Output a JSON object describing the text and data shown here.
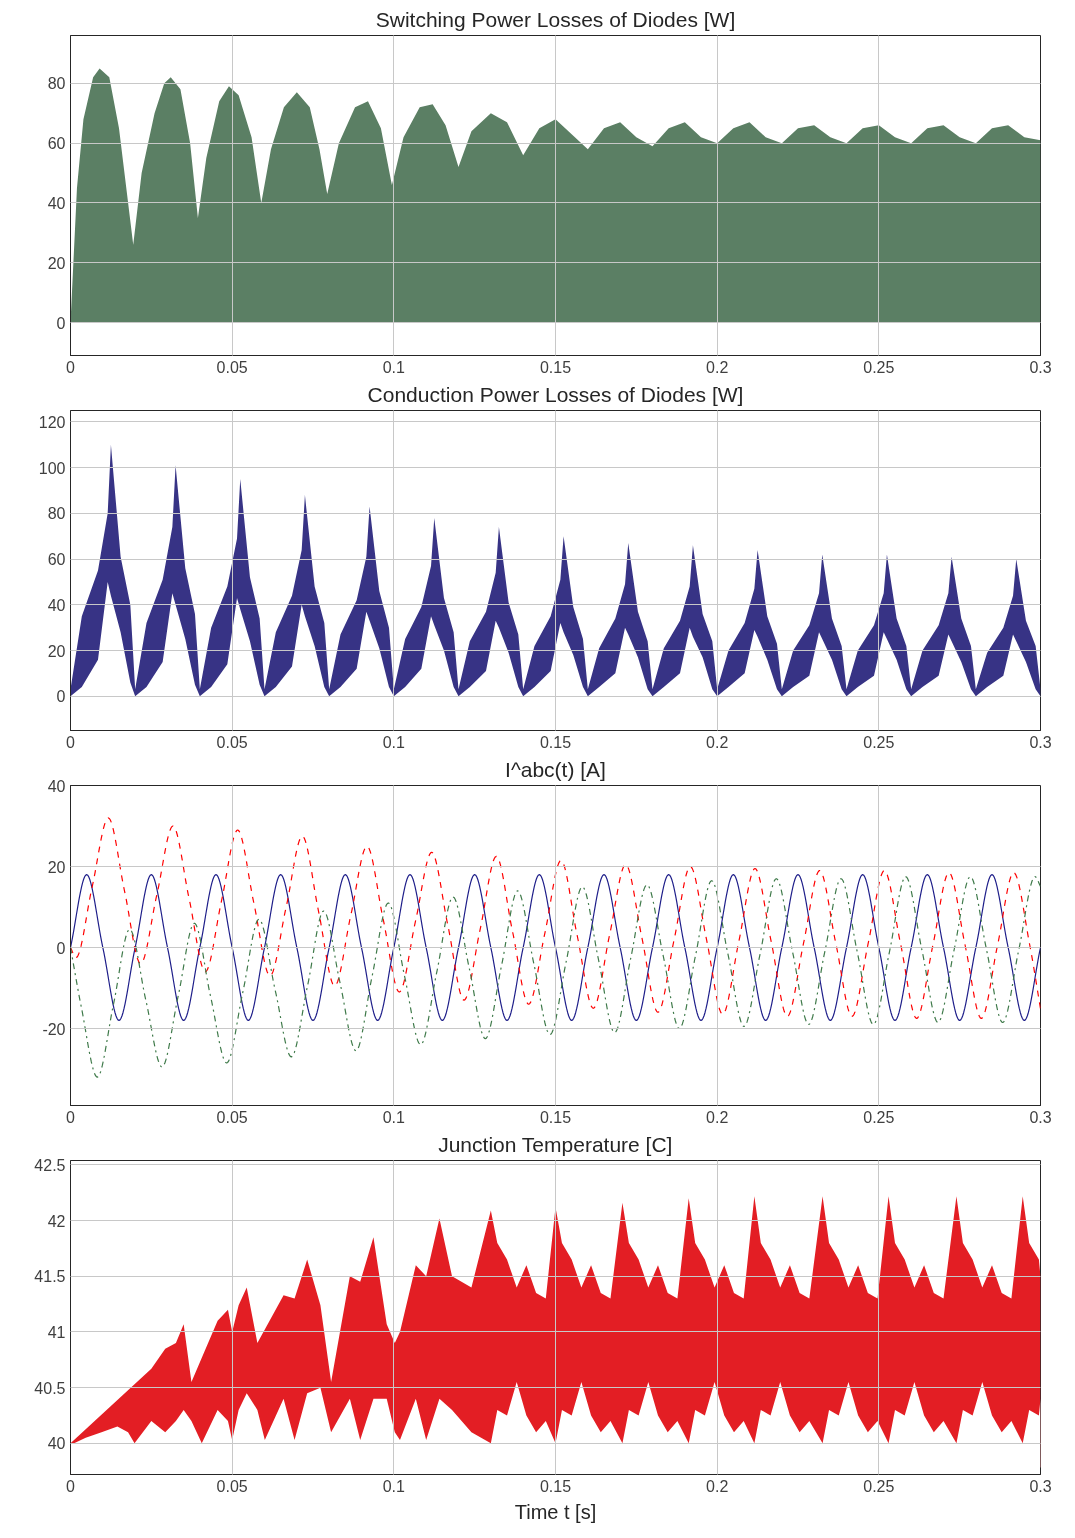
{
  "chart_data": [
    {
      "type": "area",
      "title": "Switching Power Losses of Diodes [W]",
      "color": "#5b7f64",
      "xlim": [
        0,
        0.3
      ],
      "xticks": [
        0,
        0.05,
        0.1,
        0.15,
        0.2,
        0.25,
        0.3
      ],
      "ylim": [
        -11,
        96
      ],
      "yticks": [
        0,
        20,
        40,
        60,
        80
      ],
      "grid": true,
      "x": [
        0,
        0.002,
        0.004,
        0.007,
        0.009,
        0.012,
        0.015,
        0.0194,
        0.022,
        0.026,
        0.029,
        0.031,
        0.034,
        0.037,
        0.0394,
        0.042,
        0.046,
        0.049,
        0.052,
        0.056,
        0.059,
        0.062,
        0.066,
        0.07,
        0.074,
        0.077,
        0.0794,
        0.083,
        0.088,
        0.092,
        0.096,
        0.0994,
        0.103,
        0.108,
        0.112,
        0.116,
        0.12,
        0.124,
        0.13,
        0.135,
        0.14,
        0.145,
        0.15,
        0.155,
        0.16,
        0.165,
        0.17,
        0.175,
        0.18,
        0.185,
        0.19,
        0.195,
        0.2,
        0.205,
        0.21,
        0.215,
        0.22,
        0.225,
        0.23,
        0.235,
        0.24,
        0.245,
        0.25,
        0.255,
        0.26,
        0.265,
        0.27,
        0.275,
        0.28,
        0.285,
        0.29,
        0.295,
        0.3
      ],
      "values": [
        0,
        45,
        68,
        82,
        85,
        82,
        65,
        26,
        50,
        70,
        80,
        82,
        78,
        60,
        35,
        55,
        74,
        79,
        76,
        62,
        40,
        58,
        72,
        77,
        72,
        58,
        43,
        60,
        72,
        74,
        65,
        46,
        62,
        72,
        73,
        66,
        52,
        64,
        70,
        67,
        56,
        65,
        68,
        63,
        58,
        65,
        67,
        62,
        59,
        65,
        67,
        62,
        60,
        65,
        67,
        62,
        60,
        65,
        66,
        62,
        60,
        65,
        66,
        62,
        60,
        65,
        66,
        62,
        60,
        65,
        66,
        62,
        61
      ]
    },
    {
      "type": "area",
      "title": "Conduction Power Losses of Diodes [W]",
      "xlim": [
        0,
        0.3
      ],
      "xticks": [
        0,
        0.05,
        0.1,
        0.15,
        0.2,
        0.25,
        0.3
      ],
      "ylim": [
        -15,
        125
      ],
      "yticks": [
        0,
        20,
        40,
        60,
        80,
        100,
        120
      ],
      "grid": true,
      "x": [
        0,
        0.0035,
        0.0085,
        0.0115,
        0.0125,
        0.0155,
        0.0185,
        0.02,
        0.0235,
        0.0285,
        0.0315,
        0.0325,
        0.0355,
        0.0385,
        0.04,
        0.0435,
        0.0485,
        0.0515,
        0.0525,
        0.0555,
        0.0585,
        0.06,
        0.0635,
        0.0685,
        0.0715,
        0.0725,
        0.0755,
        0.0785,
        0.08,
        0.0835,
        0.0885,
        0.0915,
        0.0925,
        0.0955,
        0.0985,
        0.1,
        0.1035,
        0.1085,
        0.1115,
        0.1125,
        0.1155,
        0.1185,
        0.12,
        0.1235,
        0.1285,
        0.1315,
        0.1325,
        0.1355,
        0.1385,
        0.14,
        0.1435,
        0.1485,
        0.1515,
        0.1525,
        0.1555,
        0.1585,
        0.16,
        0.1635,
        0.1685,
        0.1715,
        0.1725,
        0.1755,
        0.1785,
        0.18,
        0.1835,
        0.1885,
        0.1915,
        0.1925,
        0.1955,
        0.1985,
        0.2,
        0.2035,
        0.2085,
        0.2115,
        0.2125,
        0.2155,
        0.2185,
        0.22,
        0.2235,
        0.2285,
        0.2315,
        0.2325,
        0.2355,
        0.2385,
        0.24,
        0.2435,
        0.2485,
        0.2515,
        0.2525,
        0.2555,
        0.2585,
        0.26,
        0.2635,
        0.2685,
        0.2715,
        0.2725,
        0.2755,
        0.2785,
        0.28,
        0.2835,
        0.2885,
        0.2915,
        0.2925,
        0.2955,
        0.2985,
        0.3
      ],
      "series": [
        {
          "color": "#373385",
          "values": [
            3,
            35,
            55,
            80,
            110,
            61,
            40,
            3,
            32,
            51,
            74,
            101,
            56,
            36,
            3,
            30,
            48,
            69,
            95,
            52,
            34,
            3,
            28,
            44,
            64,
            88,
            48,
            32,
            3,
            27,
            42,
            61,
            83,
            46,
            30,
            3,
            25,
            39,
            57,
            78,
            43,
            28,
            3,
            24,
            37,
            54,
            74,
            41,
            27,
            3,
            22,
            35,
            51,
            70,
            39,
            25,
            3,
            21,
            34,
            49,
            67,
            37,
            24,
            3,
            21,
            33,
            48,
            66,
            36,
            24,
            3,
            20,
            32,
            47,
            64,
            35,
            23,
            3,
            20,
            31,
            45,
            62,
            34,
            22,
            3,
            20,
            31,
            45,
            62,
            34,
            22,
            3,
            20,
            31,
            45,
            61,
            34,
            22,
            3,
            19,
            30,
            44,
            60,
            33,
            22,
            3
          ]
        },
        {
          "color": "#ffffff",
          "values": [
            0,
            4,
            16,
            50,
            44,
            28,
            6,
            0,
            4,
            15,
            45,
            40,
            25,
            5,
            0,
            4,
            14,
            43,
            38,
            24,
            5,
            0,
            4,
            13,
            40,
            35,
            22,
            4,
            0,
            4,
            12,
            37,
            33,
            21,
            4,
            0,
            4,
            12,
            35,
            31,
            20,
            4,
            0,
            4,
            11,
            33,
            30,
            19,
            4,
            0,
            4,
            11,
            32,
            28,
            18,
            4,
            0,
            4,
            10,
            30,
            27,
            17,
            3,
            0,
            4,
            10,
            30,
            26,
            17,
            3,
            0,
            4,
            10,
            29,
            26,
            16,
            3,
            0,
            4,
            9,
            28,
            25,
            16,
            3,
            0,
            4,
            9,
            28,
            25,
            16,
            3,
            0,
            4,
            9,
            27,
            24,
            15,
            3,
            0,
            4,
            9,
            27,
            24,
            15,
            3,
            0
          ]
        }
      ]
    },
    {
      "type": "line",
      "title": "I^abc(t) [A]",
      "xlim": [
        0,
        0.3
      ],
      "xticks": [
        0,
        0.05,
        0.1,
        0.15,
        0.2,
        0.25,
        0.3
      ],
      "ylim": [
        -39,
        40
      ],
      "yticks": [
        -20,
        0,
        20,
        40
      ],
      "grid": true,
      "series": [
        {
          "color": "#1f1f8a",
          "line_style": "solid",
          "x": [
            0,
            0.005,
            0.01,
            0.015,
            0.02,
            0.025,
            0.03,
            0.035,
            0.04,
            0.045,
            0.05,
            0.055,
            0.06,
            0.065,
            0.07,
            0.075,
            0.08,
            0.085,
            0.09,
            0.095,
            0.1,
            0.105,
            0.11,
            0.115,
            0.12,
            0.125,
            0.13,
            0.135,
            0.14,
            0.145,
            0.15,
            0.155,
            0.16,
            0.165,
            0.17,
            0.175,
            0.18,
            0.185,
            0.19,
            0.195,
            0.2,
            0.205,
            0.21,
            0.215,
            0.22,
            0.225,
            0.23,
            0.235,
            0.24,
            0.245,
            0.25,
            0.255,
            0.26,
            0.265,
            0.27,
            0.275,
            0.28,
            0.285,
            0.29,
            0.295,
            0.3
          ],
          "values": [
            0,
            18,
            0,
            -18,
            0,
            18,
            0,
            -18,
            0,
            18,
            0,
            -18,
            0,
            18,
            0,
            -18,
            0,
            18,
            0,
            -18,
            0,
            18,
            0,
            -18,
            0,
            18,
            0,
            -18,
            0,
            18,
            0,
            -18,
            0,
            18,
            0,
            -18,
            0,
            18,
            0,
            -18,
            0,
            18,
            0,
            -18,
            0,
            18,
            0,
            -18,
            0,
            18,
            0,
            -18,
            0,
            18,
            0,
            -18,
            0,
            18,
            0,
            -18,
            0
          ]
        },
        {
          "color": "#ff0000",
          "line_style": "dashed",
          "x": [
            0,
            0.0017,
            0.0067,
            0.0117,
            0.0167,
            0.0217,
            0.0267,
            0.0317,
            0.0367,
            0.0417,
            0.0467,
            0.0517,
            0.0567,
            0.0617,
            0.0667,
            0.0717,
            0.0767,
            0.0817,
            0.0867,
            0.0917,
            0.0967,
            0.1017,
            0.1067,
            0.1117,
            0.1167,
            0.1217,
            0.1267,
            0.1317,
            0.1367,
            0.1417,
            0.1467,
            0.1517,
            0.1567,
            0.1617,
            0.1667,
            0.1717,
            0.1767,
            0.1817,
            0.1867,
            0.1917,
            0.1967,
            0.2017,
            0.2067,
            0.2117,
            0.2167,
            0.2217,
            0.2267,
            0.2317,
            0.2367,
            0.2417,
            0.2467,
            0.2517,
            0.2567,
            0.2617,
            0.2667,
            0.2717,
            0.2767,
            0.2817,
            0.2867,
            0.2917,
            0.2967,
            0.3
          ],
          "values": [
            0,
            -2.5,
            15,
            32,
            14,
            -4,
            13,
            30,
            12,
            -6,
            11.5,
            29,
            11,
            -7,
            10,
            27.5,
            9,
            -9.5,
            8,
            25,
            7,
            -11,
            6.5,
            23.5,
            5.5,
            -13,
            4.5,
            22.5,
            4,
            -14,
            3.5,
            21.5,
            3,
            -15,
            3,
            20.5,
            2.5,
            -16,
            2,
            20,
            2,
            -16.5,
            1.5,
            19.5,
            1.5,
            -17,
            1,
            19,
            1,
            -17,
            1,
            19,
            1,
            -17.5,
            0.5,
            18.5,
            0.5,
            -17.5,
            0.5,
            18.5,
            0.5,
            -15.1
          ]
        },
        {
          "color": "#3f7a4a",
          "line_style": "dashdot",
          "x": [
            0,
            0.0033,
            0.0083,
            0.0133,
            0.0183,
            0.0233,
            0.0283,
            0.0333,
            0.0383,
            0.0433,
            0.0483,
            0.0533,
            0.0583,
            0.0633,
            0.0683,
            0.0733,
            0.0783,
            0.0833,
            0.0883,
            0.0933,
            0.0983,
            0.1033,
            0.1083,
            0.1133,
            0.1183,
            0.1233,
            0.1283,
            0.1333,
            0.1383,
            0.1433,
            0.1483,
            0.1533,
            0.1583,
            0.1633,
            0.1683,
            0.1733,
            0.1783,
            0.1833,
            0.1883,
            0.1933,
            0.1983,
            0.2033,
            0.2083,
            0.2133,
            0.2183,
            0.2233,
            0.2283,
            0.2333,
            0.2383,
            0.2433,
            0.2483,
            0.2533,
            0.2583,
            0.2633,
            0.2683,
            0.2733,
            0.2783,
            0.2833,
            0.2883,
            0.2933,
            0.2983,
            0.3
          ],
          "values": [
            0,
            -14.5,
            -32,
            -14,
            4.5,
            -13,
            -29.5,
            -12,
            6,
            -12,
            -28.5,
            -11,
            7,
            -10.5,
            -27,
            -9.5,
            9,
            -8.5,
            -25.5,
            -7,
            11,
            -7,
            -24,
            -6,
            12.5,
            -5,
            -22.5,
            -4.5,
            14,
            -4,
            -21.5,
            -3.5,
            15,
            -3,
            -21,
            -2.5,
            15.5,
            -2,
            -20,
            -2,
            16.5,
            -1.5,
            -19.5,
            -1.5,
            17,
            -1,
            -19,
            -1,
            17,
            -1,
            -19,
            -1,
            17.5,
            -0.5,
            -18.5,
            -0.5,
            17.5,
            -0.5,
            -18.5,
            -0.5,
            17.5,
            15.1
          ]
        }
      ]
    },
    {
      "type": "area",
      "title": "Junction Temperature [C]",
      "xlabel": "Time t [s]",
      "xlim": [
        0,
        0.3
      ],
      "xticks": [
        0,
        0.05,
        0.1,
        0.15,
        0.2,
        0.25,
        0.3
      ],
      "ylim": [
        39.72,
        42.54
      ],
      "yticks": [
        40,
        40.5,
        41,
        41.5,
        42,
        42.5
      ],
      "grid": true,
      "x": [
        0,
        0.0011,
        0.0047,
        0.0096,
        0.0145,
        0.0178,
        0.0198,
        0.025,
        0.0293,
        0.0326,
        0.035,
        0.0374,
        0.0406,
        0.0455,
        0.0487,
        0.05,
        0.052,
        0.0545,
        0.0578,
        0.0601,
        0.0659,
        0.0693,
        0.0732,
        0.0773,
        0.0806,
        0.0864,
        0.0896,
        0.0937,
        0.0978,
        0.1003,
        0.1019,
        0.1068,
        0.11,
        0.1141,
        0.118,
        0.124,
        0.13,
        0.132,
        0.135,
        0.138,
        0.141,
        0.144,
        0.147,
        0.15,
        0.152,
        0.155,
        0.158,
        0.161,
        0.164,
        0.167,
        0.1707,
        0.1727,
        0.1757,
        0.1787,
        0.1817,
        0.1847,
        0.1877,
        0.1912,
        0.1932,
        0.1962,
        0.1992,
        0.2022,
        0.2052,
        0.2082,
        0.2115,
        0.2135,
        0.2165,
        0.2195,
        0.2225,
        0.2255,
        0.2285,
        0.2326,
        0.2346,
        0.2376,
        0.2406,
        0.2436,
        0.2466,
        0.2496,
        0.253,
        0.255,
        0.258,
        0.261,
        0.264,
        0.267,
        0.27,
        0.274,
        0.276,
        0.279,
        0.282,
        0.285,
        0.288,
        0.291,
        0.2945,
        0.2965,
        0.2995,
        0.3
      ],
      "series": [
        {
          "color": "#e31e24",
          "values": [
            40,
            null,
            null,
            null,
            null,
            null,
            null,
            40.67,
            40.85,
            40.9,
            41.07,
            40.55,
            null,
            41.1,
            41.2,
            41,
            41.24,
            41.4,
            40.9,
            null,
            41.33,
            41.3,
            41.65,
            41.24,
            40.55,
            41.5,
            41.45,
            41.85,
            41.07,
            40.9,
            41,
            41.6,
            41.5,
            42.02,
            41.5,
            41.4,
            42.09,
            41.8,
            41.65,
            41.4,
            41.6,
            41.35,
            41.3,
            42.12,
            41.8,
            41.65,
            41.4,
            41.6,
            41.35,
            41.3,
            42.16,
            41.8,
            41.65,
            41.4,
            41.6,
            41.35,
            41.3,
            42.2,
            41.8,
            41.65,
            41.4,
            41.6,
            41.35,
            41.3,
            42.22,
            41.8,
            41.65,
            41.4,
            41.6,
            41.35,
            41.3,
            42.22,
            41.8,
            41.65,
            41.4,
            41.6,
            41.35,
            41.3,
            42.22,
            41.8,
            41.65,
            41.4,
            41.6,
            41.35,
            41.3,
            42.22,
            41.8,
            41.65,
            41.4,
            41.6,
            41.35,
            41.3,
            42.22,
            41.8,
            41.65,
            41.5
          ]
        },
        {
          "color": "#ffffff",
          "values": [
            40,
            40,
            40.05,
            40.1,
            40.15,
            40.1,
            40,
            40.2,
            40.1,
            40.2,
            40.3,
            40.2,
            40,
            40.3,
            40.2,
            40.03,
            40.3,
            40.45,
            40.3,
            40.03,
            40.4,
            40.03,
            40.45,
            40.5,
            40.1,
            40.4,
            40.03,
            40.4,
            40.4,
            40.1,
            40.03,
            40.4,
            40.03,
            40.4,
            40.3,
            40.1,
            40,
            40.3,
            40.25,
            40.55,
            40.25,
            40.1,
            40.2,
            40,
            40.3,
            40.25,
            40.55,
            40.25,
            40.1,
            40.2,
            40,
            40.3,
            40.25,
            40.55,
            40.25,
            40.1,
            40.2,
            40,
            40.3,
            40.25,
            40.55,
            40.25,
            40.1,
            40.2,
            40,
            40.3,
            40.25,
            40.55,
            40.25,
            40.1,
            40.2,
            40,
            40.3,
            40.25,
            40.55,
            40.25,
            40.1,
            40.2,
            40,
            40.3,
            40.25,
            40.55,
            40.25,
            40.1,
            40.2,
            40,
            40.3,
            40.25,
            40.55,
            40.25,
            40.1,
            40.2,
            40,
            40.3,
            40.25,
            40.4
          ]
        }
      ]
    }
  ]
}
